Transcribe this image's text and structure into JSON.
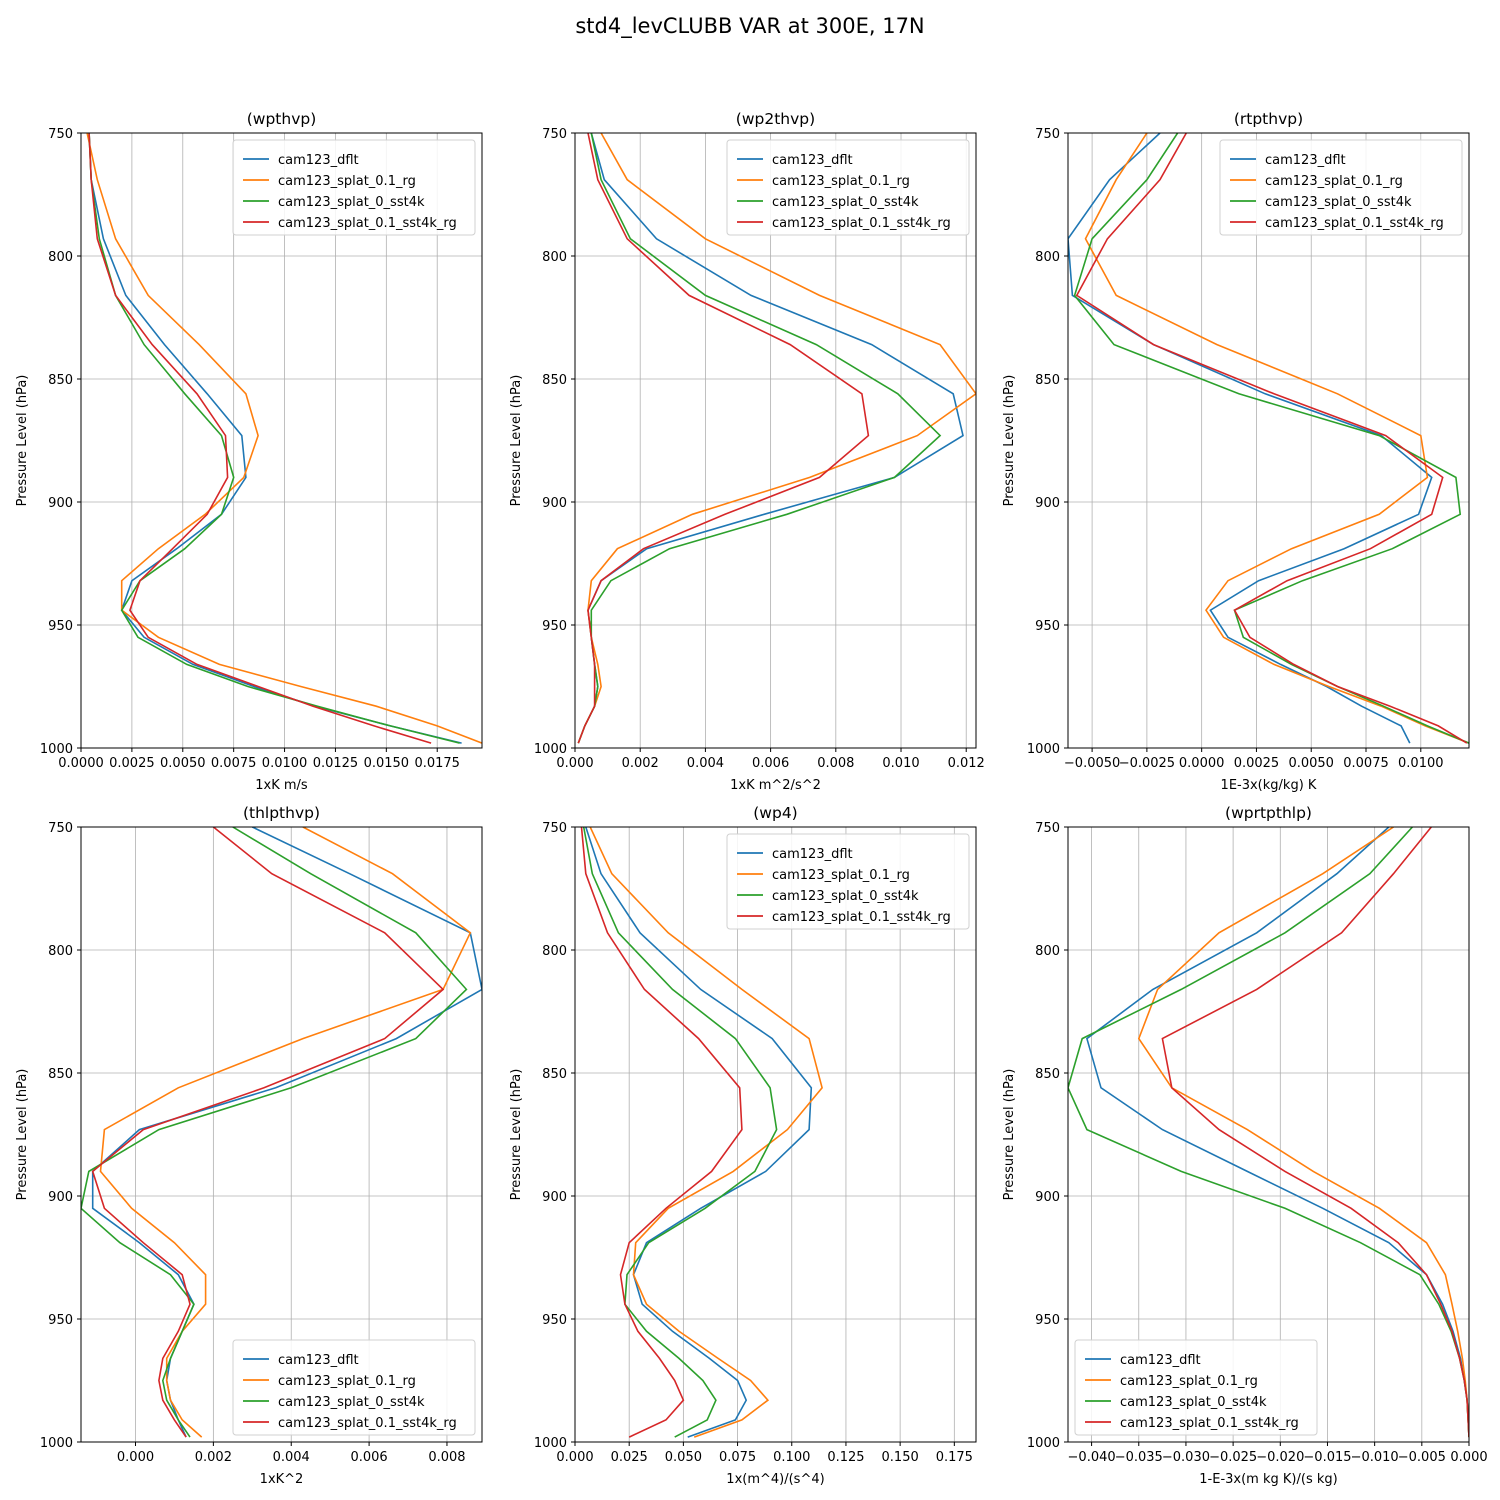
{
  "figure": {
    "title": "std4_levCLUBB VAR at 300E, 17N",
    "series_names": [
      "cam123_dflt",
      "cam123_splat_0.1_rg",
      "cam123_splat_0_sst4k",
      "cam123_splat_0.1_sst4k_rg"
    ],
    "colors": [
      "#1f77b4",
      "#ff7f0e",
      "#2ca02c",
      "#d62728"
    ],
    "levels": [
      750,
      769,
      793,
      816,
      836,
      856,
      873,
      890,
      905,
      919,
      932,
      944,
      955,
      966,
      975,
      983,
      991,
      998
    ]
  },
  "chart_data": [
    {
      "type": "line",
      "title": "(wpthvp)",
      "xlabel": "1xK m/s",
      "ylabel": "Pressure Level (hPa)",
      "xlim": [
        0,
        0.0197
      ],
      "ylim": [
        1000,
        750
      ],
      "xticks": [
        0,
        0.0025,
        0.005,
        0.0075,
        0.01,
        0.0125,
        0.015,
        0.0175
      ],
      "xtick_labels": [
        "0.0000",
        "0.0025",
        "0.0050",
        "0.0075",
        "0.0100",
        "0.0125",
        "0.0150",
        "0.0175"
      ],
      "yticks": [
        750,
        800,
        850,
        900,
        950,
        1000
      ],
      "ytick_labels": [
        "750",
        "800",
        "850",
        "900",
        "950",
        "1000"
      ],
      "grid": true,
      "legend": "upper right",
      "series": [
        {
          "name": "cam123_dflt",
          "values": [
            0.0004,
            0.0005,
            0.0011,
            0.0022,
            0.0041,
            0.0062,
            0.0079,
            0.0081,
            0.0069,
            0.0047,
            0.0025,
            0.002,
            0.0031,
            0.0055,
            0.0085,
            0.0115,
            0.0152,
            0.0187
          ]
        },
        {
          "name": "cam123_splat_0.1_rg",
          "values": [
            0.0003,
            0.0008,
            0.0017,
            0.0033,
            0.0058,
            0.0081,
            0.0087,
            0.008,
            0.0061,
            0.0038,
            0.002,
            0.002,
            0.0038,
            0.0068,
            0.0108,
            0.0145,
            0.0175,
            0.0197
          ]
        },
        {
          "name": "cam123_splat_0_sst4k",
          "values": [
            0.0004,
            0.0005,
            0.0009,
            0.0017,
            0.0031,
            0.0051,
            0.0069,
            0.0075,
            0.0069,
            0.0051,
            0.0029,
            0.002,
            0.0028,
            0.0052,
            0.0082,
            0.0116,
            0.0152,
            0.0186
          ]
        },
        {
          "name": "cam123_splat_0.1_sst4k_rg",
          "values": [
            0.0004,
            0.0005,
            0.0008,
            0.0017,
            0.0035,
            0.0057,
            0.0071,
            0.0072,
            0.0062,
            0.0045,
            0.0029,
            0.0024,
            0.0033,
            0.0057,
            0.0087,
            0.0114,
            0.0144,
            0.0172
          ]
        }
      ]
    },
    {
      "type": "line",
      "title": "(wp2thvp)",
      "xlabel": "1xK m^2/s^2",
      "ylabel": "Pressure Level (hPa)",
      "xlim": [
        0,
        0.0123
      ],
      "ylim": [
        1000,
        750
      ],
      "xticks": [
        0,
        0.002,
        0.004,
        0.006,
        0.008,
        0.01,
        0.012
      ],
      "xtick_labels": [
        "0.000",
        "0.002",
        "0.004",
        "0.006",
        "0.008",
        "0.010",
        "0.012"
      ],
      "yticks": [
        750,
        800,
        850,
        900,
        950,
        1000
      ],
      "ytick_labels": [
        "750",
        "800",
        "850",
        "900",
        "950",
        "1000"
      ],
      "grid": true,
      "legend": "upper right",
      "series": [
        {
          "name": "cam123_dflt",
          "values": [
            0.0005,
            0.0009,
            0.0025,
            0.0054,
            0.0091,
            0.0116,
            0.0119,
            0.0098,
            0.0058,
            0.0022,
            0.0008,
            0.0004,
            0.0005,
            0.0006,
            0.0007,
            0.0006,
            0.0003,
            0.0001
          ]
        },
        {
          "name": "cam123_splat_0.1_rg",
          "values": [
            0.0008,
            0.0016,
            0.004,
            0.0075,
            0.0112,
            0.0123,
            0.0105,
            0.0072,
            0.0036,
            0.0013,
            0.0005,
            0.0004,
            0.0005,
            0.0007,
            0.0008,
            0.0006,
            0.0003,
            0.0001
          ]
        },
        {
          "name": "cam123_splat_0_sst4k",
          "values": [
            0.0005,
            0.0008,
            0.0017,
            0.004,
            0.0074,
            0.0099,
            0.0112,
            0.0098,
            0.0065,
            0.0029,
            0.0011,
            0.0005,
            0.0005,
            0.0006,
            0.0007,
            0.0006,
            0.0003,
            0.0001
          ]
        },
        {
          "name": "cam123_splat_0.1_sst4k_rg",
          "values": [
            0.0004,
            0.0007,
            0.0016,
            0.0035,
            0.0066,
            0.0088,
            0.009,
            0.0075,
            0.0046,
            0.0021,
            0.0008,
            0.0004,
            0.0005,
            0.0006,
            0.0006,
            0.0006,
            0.0003,
            0.0001
          ]
        }
      ]
    },
    {
      "type": "line",
      "title": "(rtpthvp)",
      "xlabel": "1E-3x(kg/kg) K",
      "ylabel": "Pressure Level (hPa)",
      "xlim": [
        -0.0061,
        0.0122
      ],
      "ylim": [
        1000,
        750
      ],
      "xticks": [
        -0.005,
        -0.0025,
        0,
        0.0025,
        0.005,
        0.0075,
        0.01
      ],
      "xtick_labels": [
        "−0.0050",
        "−0.0025",
        "0.0000",
        "0.0025",
        "0.0050",
        "0.0075",
        "0.0100"
      ],
      "yticks": [
        750,
        800,
        850,
        900,
        950,
        1000
      ],
      "ytick_labels": [
        "750",
        "800",
        "850",
        "900",
        "950",
        "1000"
      ],
      "grid": true,
      "legend": "upper right",
      "series": [
        {
          "name": "cam123_dflt",
          "values": [
            -0.0019,
            -0.0042,
            -0.0061,
            -0.0059,
            -0.0022,
            0.0029,
            0.0082,
            0.0105,
            0.0099,
            0.0065,
            0.0026,
            0.0004,
            0.0012,
            0.0036,
            0.0057,
            0.0073,
            0.0091,
            0.0095
          ]
        },
        {
          "name": "cam123_splat_0.1_rg",
          "values": [
            -0.0025,
            -0.0039,
            -0.0053,
            -0.0039,
            0.0007,
            0.0062,
            0.01,
            0.0103,
            0.0081,
            0.0041,
            0.0012,
            0.0002,
            0.001,
            0.0033,
            0.0058,
            0.0082,
            0.0102,
            0.0122
          ]
        },
        {
          "name": "cam123_splat_0_sst4k",
          "values": [
            -0.0011,
            -0.0025,
            -0.005,
            -0.0058,
            -0.004,
            0.0017,
            0.0081,
            0.0116,
            0.0118,
            0.0087,
            0.0046,
            0.0015,
            0.0019,
            0.0041,
            0.0062,
            0.0083,
            0.0103,
            0.0122
          ]
        },
        {
          "name": "cam123_splat_0.1_sst4k_rg",
          "values": [
            -0.0007,
            -0.0019,
            -0.0043,
            -0.0057,
            -0.0022,
            0.0033,
            0.0084,
            0.011,
            0.0105,
            0.0077,
            0.0039,
            0.0015,
            0.0022,
            0.0042,
            0.0062,
            0.0086,
            0.0108,
            0.0121
          ]
        }
      ]
    },
    {
      "type": "line",
      "title": "(thlpthvp)",
      "xlabel": "1xK^2",
      "ylabel": "Pressure Level (hPa)",
      "xlim": [
        -0.0014,
        0.0089
      ],
      "ylim": [
        1000,
        750
      ],
      "xticks": [
        0,
        0.002,
        0.004,
        0.006,
        0.008
      ],
      "xtick_labels": [
        "0.000",
        "0.002",
        "0.004",
        "0.006",
        "0.008"
      ],
      "yticks": [
        750,
        800,
        850,
        900,
        950,
        1000
      ],
      "ytick_labels": [
        "750",
        "800",
        "850",
        "900",
        "950",
        "1000"
      ],
      "grid": true,
      "legend": "lower right",
      "series": [
        {
          "name": "cam123_dflt",
          "values": [
            0.003,
            0.0055,
            0.0086,
            0.0089,
            0.0067,
            0.0036,
            0.0001,
            -0.0011,
            -0.0011,
            0.0001,
            0.0011,
            0.0015,
            0.0012,
            0.0009,
            0.0008,
            0.0009,
            0.0011,
            0.0013
          ]
        },
        {
          "name": "cam123_splat_0.1_rg",
          "values": [
            0.0043,
            0.0066,
            0.0086,
            0.0079,
            0.0043,
            0.0011,
            -0.0008,
            -0.0009,
            -0.0001,
            0.001,
            0.0018,
            0.0018,
            0.0012,
            0.0008,
            0.0008,
            0.0009,
            0.0012,
            0.0017
          ]
        },
        {
          "name": "cam123_splat_0_sst4k",
          "values": [
            0.0025,
            0.0045,
            0.0072,
            0.0085,
            0.0072,
            0.004,
            0.0006,
            -0.0012,
            -0.0014,
            -0.0004,
            0.0009,
            0.0015,
            0.0012,
            0.0009,
            0.0007,
            0.0008,
            0.0011,
            0.0014
          ]
        },
        {
          "name": "cam123_splat_0.1_sst4k_rg",
          "values": [
            0.002,
            0.0035,
            0.0064,
            0.0079,
            0.0064,
            0.0033,
            0.0002,
            -0.0011,
            -0.0008,
            0.0002,
            0.0012,
            0.0014,
            0.0011,
            0.0007,
            0.0006,
            0.0007,
            0.001,
            0.0013
          ]
        }
      ]
    },
    {
      "type": "line",
      "title": "(wp4)",
      "xlabel": "1x(m^4)/(s^4)",
      "ylabel": "Pressure Level (hPa)",
      "xlim": [
        0,
        0.185
      ],
      "ylim": [
        1000,
        750
      ],
      "xticks": [
        0,
        0.025,
        0.05,
        0.075,
        0.1,
        0.125,
        0.15,
        0.175
      ],
      "xtick_labels": [
        "0.000",
        "0.025",
        "0.050",
        "0.075",
        "0.100",
        "0.125",
        "0.150",
        "0.175"
      ],
      "yticks": [
        750,
        800,
        850,
        900,
        950,
        1000
      ],
      "ytick_labels": [
        "750",
        "800",
        "850",
        "900",
        "950",
        "1000"
      ],
      "grid": true,
      "legend": "upper right",
      "series": [
        {
          "name": "cam123_dflt",
          "values": [
            0.005,
            0.012,
            0.03,
            0.058,
            0.091,
            0.109,
            0.108,
            0.088,
            0.058,
            0.033,
            0.027,
            0.031,
            0.045,
            0.062,
            0.075,
            0.079,
            0.074,
            0.052
          ]
        },
        {
          "name": "cam123_splat_0.1_rg",
          "values": [
            0.007,
            0.017,
            0.043,
            0.077,
            0.108,
            0.114,
            0.098,
            0.073,
            0.043,
            0.028,
            0.027,
            0.033,
            0.048,
            0.066,
            0.081,
            0.089,
            0.077,
            0.055
          ]
        },
        {
          "name": "cam123_splat_0_sst4k",
          "values": [
            0.004,
            0.008,
            0.02,
            0.045,
            0.074,
            0.09,
            0.093,
            0.083,
            0.06,
            0.034,
            0.024,
            0.023,
            0.033,
            0.048,
            0.059,
            0.065,
            0.061,
            0.046
          ]
        },
        {
          "name": "cam123_splat_0.1_sst4k_rg",
          "values": [
            0.003,
            0.005,
            0.015,
            0.032,
            0.057,
            0.076,
            0.077,
            0.063,
            0.042,
            0.025,
            0.021,
            0.023,
            0.029,
            0.039,
            0.046,
            0.05,
            0.042,
            0.025
          ]
        }
      ]
    },
    {
      "type": "line",
      "title": "(wprtpthlp)",
      "xlabel": "1-E-3x(m kg K)/(s kg)",
      "ylabel": "Pressure Level (hPa)",
      "xlim": [
        -0.0425,
        0
      ],
      "ylim": [
        1000,
        750
      ],
      "xticks": [
        -0.04,
        -0.035,
        -0.03,
        -0.025,
        -0.02,
        -0.015,
        -0.01,
        -0.005,
        0
      ],
      "xtick_labels": [
        "−0.040",
        "−0.035",
        "−0.030",
        "−0.025",
        "−0.020",
        "−0.015",
        "−0.010",
        "−0.005",
        "0.000"
      ],
      "yticks": [
        750,
        800,
        850,
        900,
        950,
        1000
      ],
      "ytick_labels": [
        "750",
        "800",
        "850",
        "900",
        "950",
        "1000"
      ],
      "grid": true,
      "legend": "lower left",
      "series": [
        {
          "name": "cam123_dflt",
          "values": [
            -0.0085,
            -0.014,
            -0.0225,
            -0.0335,
            -0.0405,
            -0.039,
            -0.0325,
            -0.0235,
            -0.0155,
            -0.0085,
            -0.0045,
            -0.0028,
            -0.0017,
            -0.0009,
            -0.0005,
            -0.0002,
            -0.0001,
            0
          ]
        },
        {
          "name": "cam123_splat_0.1_rg",
          "values": [
            -0.008,
            -0.0155,
            -0.0265,
            -0.033,
            -0.035,
            -0.0315,
            -0.0235,
            -0.0165,
            -0.0095,
            -0.0045,
            -0.0025,
            -0.0018,
            -0.0012,
            -0.0007,
            -0.0004,
            -0.0002,
            -0.0001,
            0
          ]
        },
        {
          "name": "cam123_splat_0_sst4k",
          "values": [
            -0.006,
            -0.0105,
            -0.0195,
            -0.0305,
            -0.041,
            -0.0425,
            -0.0405,
            -0.0305,
            -0.0195,
            -0.0115,
            -0.0052,
            -0.0032,
            -0.0019,
            -0.001,
            -0.0005,
            -0.0002,
            -0.0001,
            0
          ]
        },
        {
          "name": "cam123_splat_0.1_sst4k_rg",
          "values": [
            -0.004,
            -0.008,
            -0.0135,
            -0.0225,
            -0.0325,
            -0.0315,
            -0.0265,
            -0.0195,
            -0.0125,
            -0.0075,
            -0.0045,
            -0.003,
            -0.0018,
            -0.001,
            -0.0005,
            -0.0002,
            -0.0001,
            0
          ]
        }
      ]
    }
  ]
}
